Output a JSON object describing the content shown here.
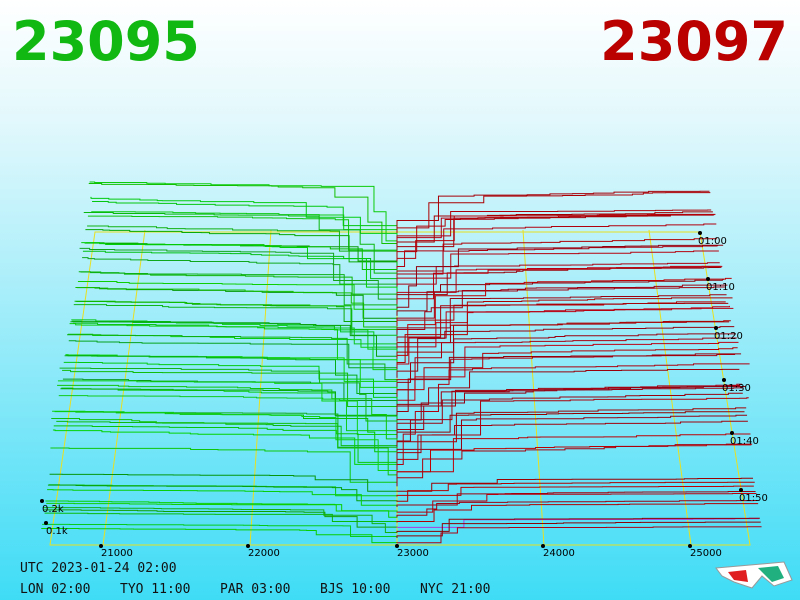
{
  "header": {
    "bid": "23095",
    "ask": "23097"
  },
  "price_axis": {
    "labels": [
      "21000",
      "22000",
      "23000",
      "24000",
      "25000"
    ]
  },
  "depth_axis": {
    "labels": [
      "0.2k",
      "0.1k"
    ]
  },
  "time_axis": {
    "labels": [
      "01:00",
      "01:10",
      "01:20",
      "01:30",
      "01:40",
      "01:50"
    ]
  },
  "footer": {
    "utc": "UTC 2023-01-24 02:00",
    "clocks": [
      "LON 02:00",
      "TYO 11:00",
      "PAR 03:00",
      "BJS 10:00",
      "NYC 21:00"
    ]
  }
}
